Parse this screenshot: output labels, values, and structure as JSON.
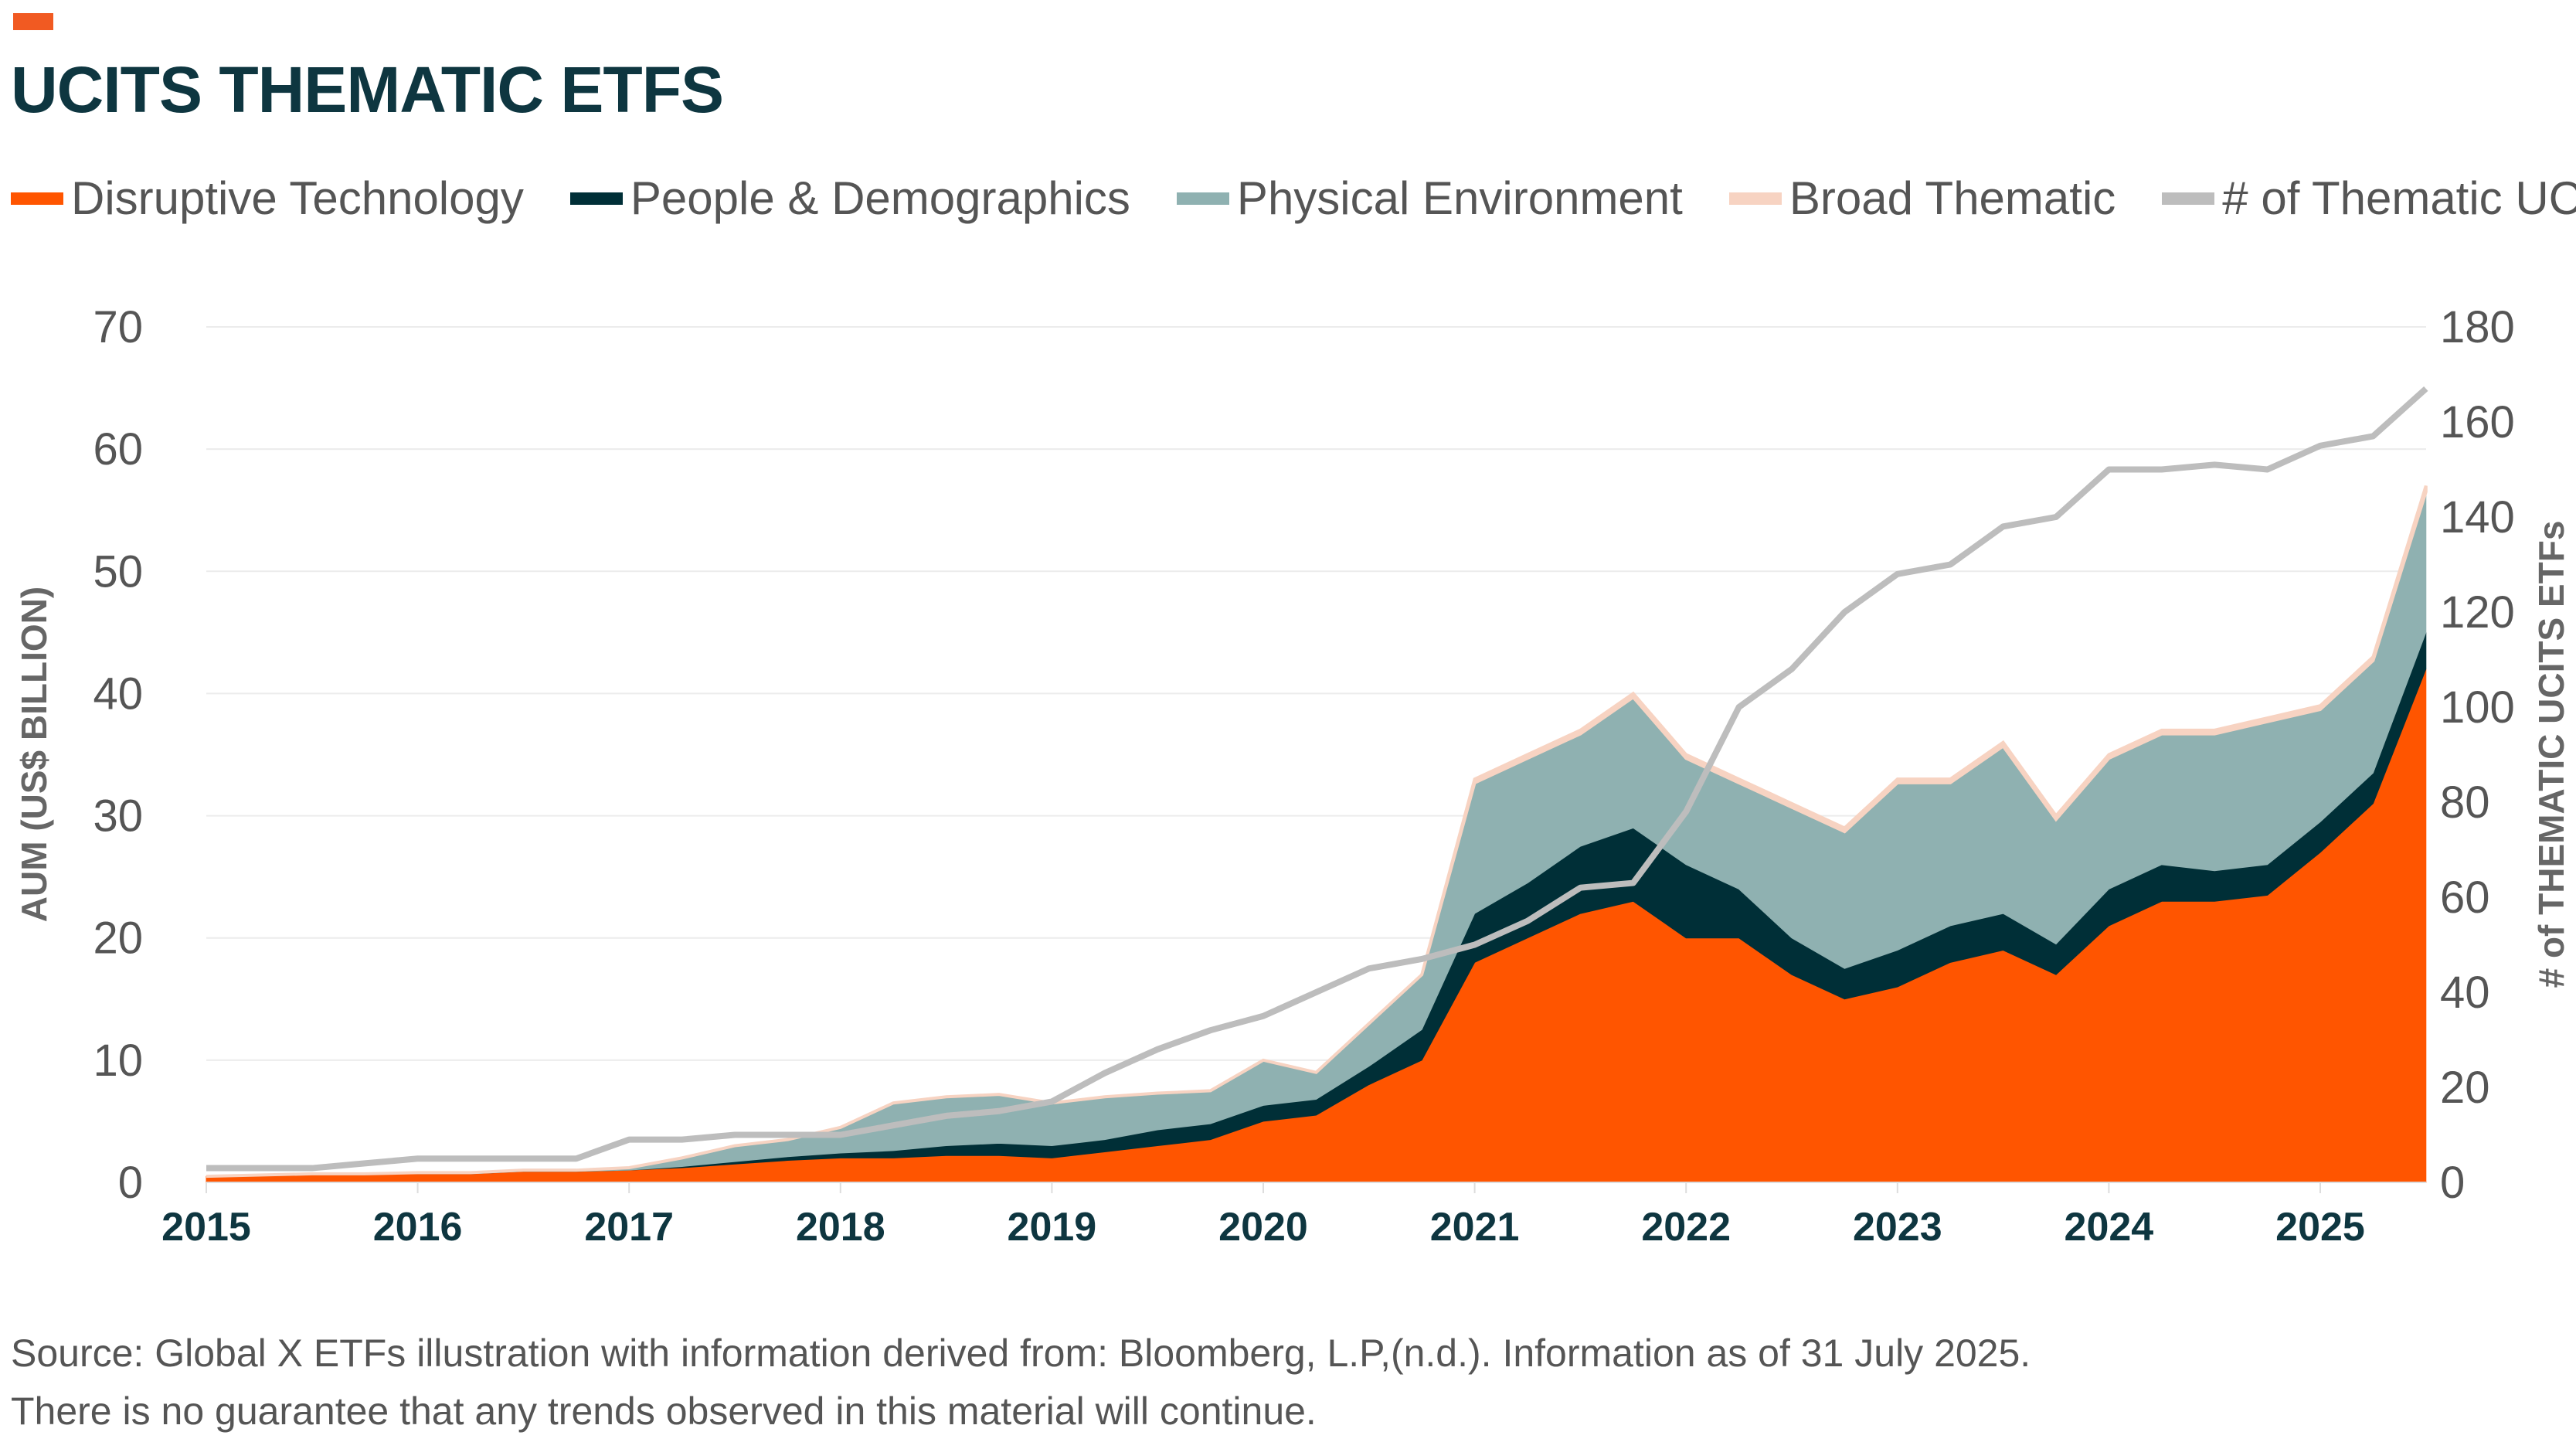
{
  "title": "UCITS THEMATIC ETFS",
  "legend": [
    {
      "label": "Disruptive Technology",
      "color": "#ff5500"
    },
    {
      "label": "People & Demographics",
      "color": "#002f37"
    },
    {
      "label": "Physical Environment",
      "color": "#8fb1b1"
    },
    {
      "label": "Broad Thematic",
      "color": "#f7d3c2"
    },
    {
      "label": "# of Thematic UCITS",
      "color": "#bdbdbd"
    }
  ],
  "source_lines": [
    "Source: Global X ETFs illustration with information derived from: Bloomberg, L.P,(n.d.). Information as of 31 July 2025.",
    "There is no guarantee that any trends observed in this material will continue."
  ],
  "chart_data": {
    "type": "area",
    "stacked": true,
    "title": "UCITS THEMATIC ETFS",
    "ylabel": "AUM (US$ BILLION)",
    "y2label": "# of THEMATIC UCITS ETFs",
    "ylim": [
      0,
      70
    ],
    "y2lim": [
      0,
      180
    ],
    "yticks": [
      "0",
      "10",
      "20",
      "30",
      "40",
      "50",
      "60",
      "70"
    ],
    "y2ticks": [
      "0",
      "20",
      "40",
      "60",
      "80",
      "100",
      "120",
      "140",
      "160",
      "180"
    ],
    "xticks": [
      "2015",
      "2016",
      "2017",
      "2018",
      "2019",
      "2020",
      "2021",
      "2022",
      "2023",
      "2024",
      "2025"
    ],
    "xlim": [
      2015,
      2025.5
    ],
    "grid": true,
    "legend_position": "top",
    "x": [
      2015,
      2015.25,
      2015.5,
      2015.75,
      2016,
      2016.25,
      2016.5,
      2016.75,
      2017,
      2017.25,
      2017.5,
      2017.75,
      2018,
      2018.25,
      2018.5,
      2018.75,
      2019,
      2019.25,
      2019.5,
      2019.75,
      2020,
      2020.25,
      2020.5,
      2020.75,
      2021,
      2021.25,
      2021.5,
      2021.75,
      2022,
      2022.25,
      2022.5,
      2022.75,
      2023,
      2023.25,
      2023.5,
      2023.75,
      2024,
      2024.25,
      2024.5,
      2024.75,
      2025,
      2025.25,
      2025.5
    ],
    "series": [
      {
        "name": "Disruptive Technology",
        "axis": "left",
        "color": "#ff5500",
        "values": [
          0.5,
          0.6,
          0.7,
          0.7,
          0.7,
          0.7,
          0.9,
          0.9,
          1,
          1.2,
          1.5,
          1.8,
          2,
          2,
          2.2,
          2.2,
          2,
          2.5,
          3,
          3.5,
          5,
          5.5,
          8,
          10,
          18,
          20,
          22,
          23,
          20,
          20,
          17,
          15,
          16,
          18,
          19,
          17,
          21,
          23,
          23,
          23.5,
          27,
          31,
          42
        ]
      },
      {
        "name": "People & Demographics",
        "axis": "left",
        "color": "#002f37",
        "values": [
          0,
          0,
          0,
          0,
          0,
          0,
          0,
          0,
          0,
          0.1,
          0.2,
          0.3,
          0.4,
          0.6,
          0.8,
          1,
          1,
          1,
          1.3,
          1.3,
          1.3,
          1.3,
          1.5,
          2.5,
          4,
          4.5,
          5.5,
          6,
          6,
          4,
          3,
          2.5,
          3,
          3,
          3,
          2.5,
          3,
          3,
          2.5,
          2.5,
          2.5,
          2.5,
          3
        ]
      },
      {
        "name": "Physical Environment",
        "axis": "left",
        "color": "#8fb1b1",
        "values": [
          0,
          0,
          0,
          0,
          0.1,
          0.1,
          0.1,
          0.1,
          0.2,
          0.7,
          1.3,
          1.4,
          2.1,
          3.9,
          4,
          4,
          3.5,
          3.5,
          3,
          2.7,
          3.7,
          2.2,
          3.5,
          4.5,
          10.7,
          10.2,
          9.2,
          10.7,
          8.7,
          8.7,
          10.7,
          11.2,
          13.7,
          11.7,
          13.7,
          10.2,
          10.7,
          10.7,
          11.2,
          11.7,
          9.2,
          9.2,
          11.5
        ]
      },
      {
        "name": "Broad Thematic",
        "axis": "left",
        "color": "#f7d3c2",
        "values": [
          0,
          0,
          0,
          0,
          0,
          0,
          0,
          0,
          0,
          0,
          0,
          0,
          0,
          0,
          0,
          0,
          0,
          0,
          0,
          0,
          0,
          0,
          0,
          0,
          0.3,
          0.3,
          0.3,
          0.3,
          0.3,
          0.3,
          0.3,
          0.3,
          0.3,
          0.3,
          0.3,
          0.3,
          0.3,
          0.3,
          0.3,
          0.3,
          0.3,
          0.3,
          0.5
        ]
      },
      {
        "name": "# of Thematic UCITS",
        "axis": "right",
        "type": "line",
        "color": "#bdbdbd",
        "values": [
          3,
          3,
          3,
          4,
          5,
          5,
          5,
          5,
          9,
          9,
          10,
          10,
          10,
          12,
          14,
          15,
          17,
          23,
          28,
          32,
          35,
          40,
          45,
          47,
          50,
          55,
          62,
          63,
          78,
          100,
          108,
          120,
          128,
          130,
          138,
          140,
          150,
          150,
          151,
          150,
          155,
          157,
          167
        ]
      }
    ]
  }
}
